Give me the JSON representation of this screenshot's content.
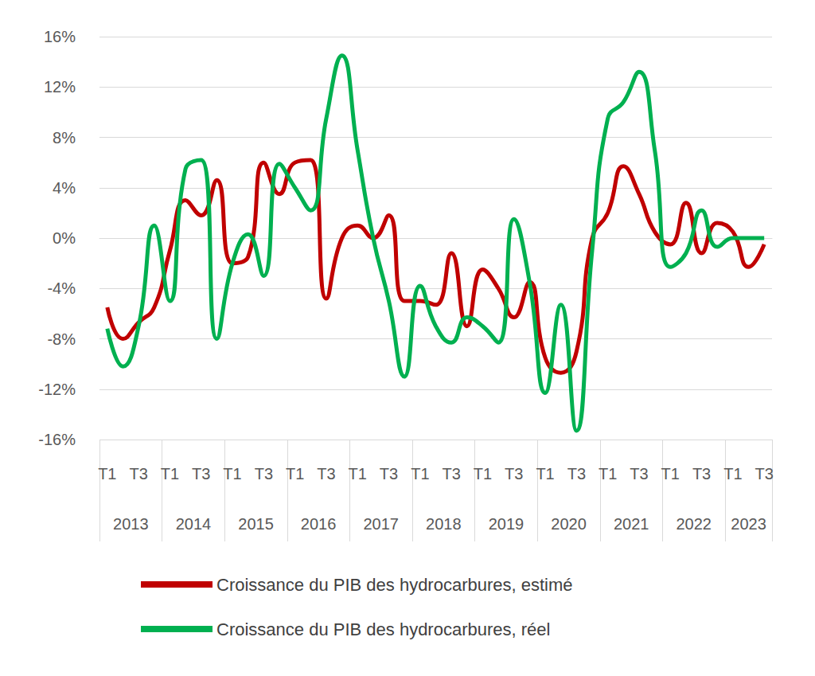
{
  "chart_data": {
    "type": "line",
    "categories": [
      "T1",
      null,
      "T3",
      null,
      "T1",
      null,
      "T3",
      null,
      "T1",
      null,
      "T3",
      null,
      "T1",
      null,
      "T3",
      null,
      "T1",
      null,
      "T3",
      null,
      "T1",
      null,
      "T3",
      null,
      "T1",
      null,
      "T3",
      null,
      "T1",
      null,
      "T3",
      null,
      "T1",
      null,
      "T3",
      null,
      "T1",
      null,
      "T3",
      null,
      "T1",
      null,
      "T3"
    ],
    "year_labels": [
      "2013",
      "2014",
      "2015",
      "2016",
      "2017",
      "2018",
      "2019",
      "2020",
      "2021",
      "2022",
      "2023"
    ],
    "series": [
      {
        "name": "Croissance du PIB des hydrocarbures, estimé",
        "color": "#C00000",
        "values": [
          -5.5,
          -8.0,
          -6.7,
          -5.5,
          -1.0,
          3.0,
          1.8,
          4.6,
          -2.0,
          -1.5,
          6.0,
          3.5,
          6.0,
          6.2,
          -4.8,
          0.0,
          1.0,
          0.0,
          1.8,
          -5.0,
          -5.0,
          -5.3,
          -1.2,
          -7.0,
          -2.5,
          -4.0,
          -6.3,
          -3.5,
          -9.5,
          -10.7,
          -9.0,
          0.0,
          2.0,
          5.7,
          3.5,
          0.5,
          -0.5,
          2.8,
          -1.2,
          1.2,
          0.5,
          -2.3,
          -0.5
        ]
      },
      {
        "name": "Croissance du PIB des hydrocarbures, réel",
        "color": "#00B050",
        "values": [
          -7.2,
          -10.2,
          -7.0,
          1.0,
          -5.0,
          5.5,
          6.2,
          -8.0,
          -2.0,
          0.3,
          -3.0,
          5.9,
          4.0,
          2.2,
          9.5,
          14.5,
          7.0,
          0.0,
          -5.0,
          -11.0,
          -3.8,
          -7.0,
          -8.3,
          -6.3,
          -7.0,
          -8.3,
          1.5,
          -3.5,
          -12.3,
          -5.3,
          -15.3,
          -1.0,
          9.5,
          10.8,
          13.2,
          7.0,
          -2.3,
          -1.2,
          2.2,
          -0.7,
          0.0,
          0.0,
          0.0
        ]
      }
    ],
    "ylim": [
      -16,
      16
    ],
    "yticks": [
      {
        "value": -16,
        "label": "-16%"
      },
      {
        "value": -12,
        "label": "-12%"
      },
      {
        "value": -8,
        "label": "-8%"
      },
      {
        "value": -4,
        "label": "-4%"
      },
      {
        "value": 0,
        "label": "0%"
      },
      {
        "value": 4,
        "label": "4%"
      },
      {
        "value": 8,
        "label": "8%"
      },
      {
        "value": 12,
        "label": "12%"
      },
      {
        "value": 16,
        "label": "16%"
      }
    ],
    "grid": true,
    "legend": "bottom"
  }
}
